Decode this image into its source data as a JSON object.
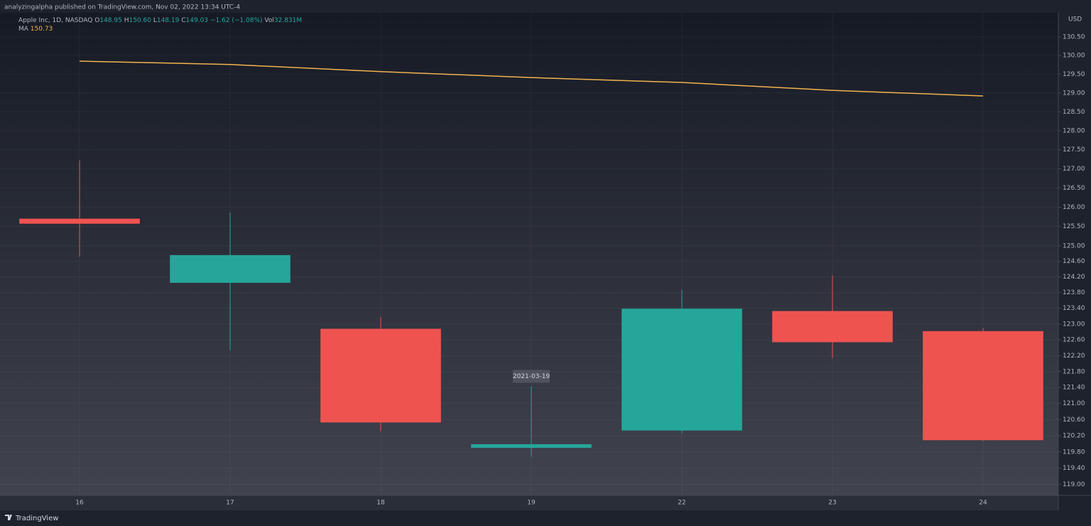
{
  "header": {
    "byline": "analyzingalpha published on TradingView.com, Nov 02, 2022 13:34 UTC-4",
    "brand": "TradingView"
  },
  "legend": {
    "symbol": "Apple Inc, 1D, NASDAQ",
    "o_label": "O",
    "open": "148.95",
    "h_label": "H",
    "high": "150.60",
    "l_label": "L",
    "low": "148.19",
    "c_label": "C",
    "close": "149.03",
    "change": "−1.62 (−1.08%)",
    "vol_label": "Vol",
    "volume": "32.831M",
    "ma_value": "150.73"
  },
  "chart_data": {
    "type": "candlestick",
    "y_unit": "USD",
    "log_scale": true,
    "grid": true,
    "categories": [
      "16",
      "17",
      "18",
      "19",
      "22",
      "23",
      "24"
    ],
    "open": [
      125.7,
      124.05,
      122.88,
      119.9,
      120.33,
      123.33,
      122.82
    ],
    "high": [
      127.22,
      125.86,
      123.18,
      121.43,
      123.87,
      124.24,
      122.9
    ],
    "low": [
      124.72,
      122.34,
      120.32,
      119.68,
      120.26,
      122.14,
      120.07
    ],
    "close": [
      125.57,
      124.76,
      120.53,
      119.99,
      123.39,
      122.54,
      120.09
    ],
    "up_color": "#26a69a",
    "down_color": "#ef5350",
    "ma": {
      "name": "MA",
      "color": "#f0b34f",
      "values": [
        129.85,
        129.76,
        129.57,
        129.41,
        129.28,
        129.07,
        128.92
      ]
    },
    "crosshair_label": "2021-03-19",
    "ylim": [
      118.73,
      131.15
    ],
    "yticks": [
      {
        "value": 119,
        "label": "119.00"
      },
      {
        "value": 119.4,
        "label": "119.40"
      },
      {
        "value": 119.8,
        "label": "119.80"
      },
      {
        "value": 120.2,
        "label": "120.20"
      },
      {
        "value": 120.6,
        "label": "120.60"
      },
      {
        "value": 121,
        "label": "121.00"
      },
      {
        "value": 121.4,
        "label": "121.40"
      },
      {
        "value": 121.8,
        "label": "121.80"
      },
      {
        "value": 122.2,
        "label": "122.20"
      },
      {
        "value": 122.6,
        "label": "122.60"
      },
      {
        "value": 123,
        "label": "123.00"
      },
      {
        "value": 123.4,
        "label": "123.40"
      },
      {
        "value": 123.8,
        "label": "123.80"
      },
      {
        "value": 124.2,
        "label": "124.20"
      },
      {
        "value": 124.6,
        "label": "124.60"
      },
      {
        "value": 125,
        "label": "125.00"
      },
      {
        "value": 125.5,
        "label": "125.50"
      },
      {
        "value": 126,
        "label": "126.00"
      },
      {
        "value": 126.5,
        "label": "126.50"
      },
      {
        "value": 127,
        "label": "127.00"
      },
      {
        "value": 127.5,
        "label": "127.50"
      },
      {
        "value": 128,
        "label": "128.00"
      },
      {
        "value": 128.5,
        "label": "128.50"
      },
      {
        "value": 129,
        "label": "129.00"
      },
      {
        "value": 129.5,
        "label": "129.50"
      },
      {
        "value": 130,
        "label": "130.00"
      },
      {
        "value": 130.5,
        "label": "130.50"
      }
    ]
  }
}
